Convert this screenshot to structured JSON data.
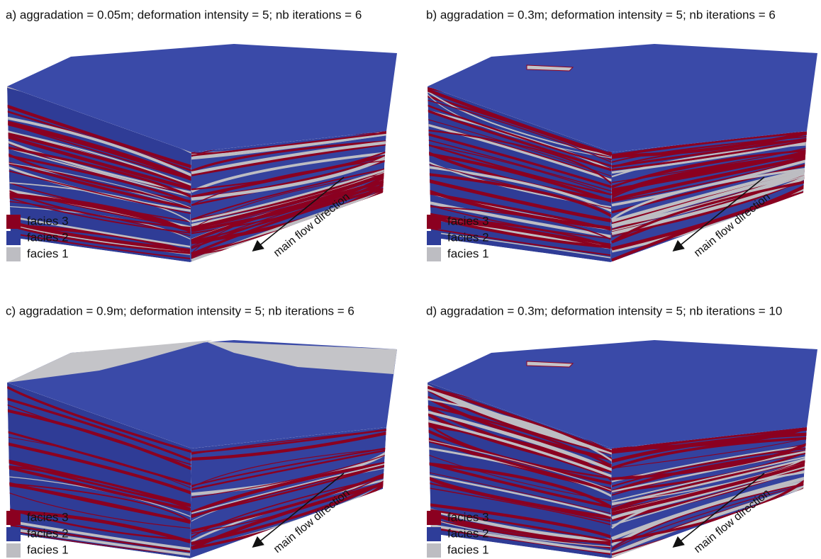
{
  "panels": [
    {
      "title": "a) aggradation = 0.05m; deformation intensity = 5; nb iterations = 6",
      "legend": [
        "facies 3",
        "facies 2",
        "facies 1"
      ],
      "arrow_label": "main flow direction"
    },
    {
      "title": "b) aggradation = 0.3m; deformation intensity = 5; nb iterations = 6",
      "legend": [
        "facies 3",
        "facies 2",
        "facies 1"
      ],
      "arrow_label": "main flow direction"
    },
    {
      "title": "c) aggradation = 0.9m; deformation intensity = 5; nb iterations = 6",
      "legend": [
        "facies 3",
        "facies 2",
        "facies 1"
      ],
      "arrow_label": "main flow direction"
    },
    {
      "title": "d) aggradation = 0.3m; deformation intensity = 5; nb iterations = 10",
      "legend": [
        "facies 3",
        "facies 2",
        "facies 1"
      ],
      "arrow_label": "main flow direction"
    }
  ]
}
